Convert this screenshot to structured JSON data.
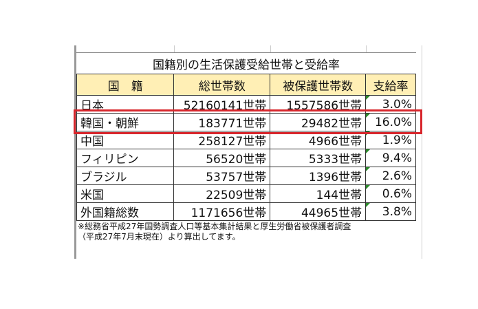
{
  "title": "国籍別の生活保護受給世帯と受給率",
  "headers": [
    "国　籍",
    "総世帯数",
    "被保護世帯数",
    "支給率"
  ],
  "rows": [
    [
      "日本",
      "52160141世帯",
      "1557586世帯",
      "3.0%"
    ],
    [
      "韓国・朝鮮",
      "183771世帯",
      "29482世帯",
      "16.0%"
    ],
    [
      "中国",
      "258127世帯",
      "4966世帯",
      "1.9%"
    ],
    [
      "フィリピン",
      "56520世帯",
      "5333世帯",
      "9.4%"
    ],
    [
      "ブラジル",
      "53757世帯",
      "1396世帯",
      "2.6%"
    ],
    [
      "米国",
      "22509世帯",
      "144世帯",
      "0.6%"
    ],
    [
      "外国籍総数",
      "1171656世帯",
      "44965世帯",
      "3.8%"
    ]
  ],
  "note": [
    "※総務省平成27年国勢調査人口等基本集計結果と厚生労働省被保護者調査",
    "（平成27年7月末現在）より算出してます。"
  ],
  "highlight_color": "#d8262c",
  "header_bg": "#ffefb5"
}
